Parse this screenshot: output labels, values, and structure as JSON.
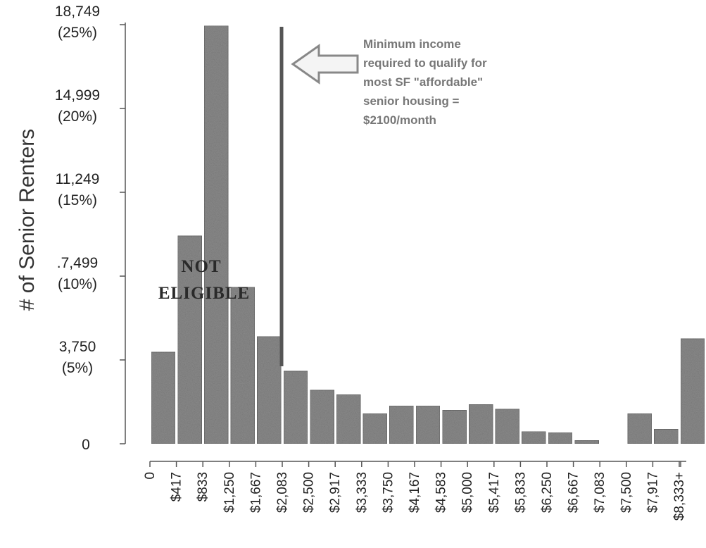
{
  "chart_data": {
    "type": "bar",
    "ylabel": "# of Senior Renters",
    "ylim": [
      0,
      18749
    ],
    "y_ticks": [
      {
        "value": 0,
        "label": "0",
        "pct": ""
      },
      {
        "value": 3750,
        "label": "3,750",
        "pct": "(5%)"
      },
      {
        "value": 7499,
        "label": ".7,499",
        "pct": "(10%)"
      },
      {
        "value": 11249,
        "label": "11,249",
        "pct": "(15%)"
      },
      {
        "value": 14999,
        "label": "14,999",
        "pct": "(20%)"
      },
      {
        "value": 18749,
        "label": "18,749",
        "pct": "(25%)"
      }
    ],
    "categories": [
      "0",
      "$417",
      "$833",
      "$1,250",
      "$1,667",
      "$2,083",
      "$2,500",
      "$2,917",
      "$3,333",
      "$3,750",
      "$4,167",
      "$4,583",
      "$5,000",
      "$5,417",
      "$5,833",
      "$6,250",
      "$6,667",
      "$7,083",
      "$7,500",
      "$7,917",
      "$8,333+"
    ],
    "values": [
      4100,
      9300,
      18700,
      7000,
      4800,
      3250,
      2400,
      2200,
      1350,
      1700,
      1700,
      1500,
      1750,
      1550,
      550,
      500,
      150,
      0,
      1350,
      650,
      4700
    ],
    "bar_color": "#8a8a8a",
    "threshold": {
      "value_label": "$2100/month",
      "line_color": "#555555"
    },
    "annotations": [
      {
        "name": "minimum-income-note",
        "lines": [
          "Minimum income",
          "required to qualify for",
          "most SF \"affordable\"",
          "senior housing =",
          "$2100/month"
        ]
      },
      {
        "name": "not-eligible-stamp",
        "lines": [
          "NOT",
          "ELIGIBLE"
        ]
      }
    ]
  }
}
